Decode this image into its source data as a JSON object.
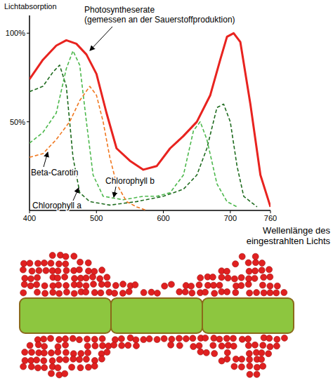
{
  "chart_data": {
    "type": "line",
    "y_label": "Lichtabsorption",
    "x_label": "Wellenlänge des eingestrahlten Lichts",
    "grid": false,
    "xlim": [
      400,
      760
    ],
    "xticks": [
      400,
      500,
      600,
      700,
      760
    ],
    "ylim": [
      0,
      110
    ],
    "yticks": [
      {
        "value": 50,
        "label": "50%"
      },
      {
        "value": 100,
        "label": "100%"
      }
    ],
    "series": [
      {
        "name": "Photosyntheserate (gemessen an der Sauerstoffproduktion)",
        "color": "#e8231f",
        "line_style": "solid",
        "x": [
          400,
          420,
          440,
          455,
          470,
          485,
          500,
          515,
          530,
          550,
          570,
          590,
          610,
          630,
          650,
          670,
          685,
          695,
          705,
          715,
          730,
          745,
          760
        ],
        "values": [
          74,
          85,
          93,
          96,
          94,
          88,
          77,
          55,
          35,
          28,
          23,
          25,
          35,
          42,
          50,
          65,
          85,
          98,
          100,
          95,
          60,
          20,
          2
        ]
      },
      {
        "name": "Chlorophyll a",
        "color": "#1e6b1e",
        "line_style": "dashed",
        "x": [
          400,
          420,
          435,
          445,
          455,
          465,
          475,
          490,
          520,
          560,
          600,
          630,
          650,
          665,
          680,
          690,
          700,
          710,
          720,
          740
        ],
        "values": [
          67,
          70,
          78,
          82,
          70,
          30,
          10,
          5,
          3,
          5,
          8,
          12,
          20,
          35,
          58,
          60,
          50,
          25,
          8,
          2
        ]
      },
      {
        "name": "Chlorophyll b",
        "color": "#4cb84c",
        "line_style": "dashed",
        "x": [
          400,
          420,
          440,
          455,
          465,
          475,
          485,
          495,
          510,
          540,
          570,
          590,
          610,
          630,
          645,
          655,
          665,
          680,
          695,
          710
        ],
        "values": [
          38,
          44,
          55,
          80,
          90,
          82,
          50,
          20,
          8,
          6,
          8,
          8,
          10,
          20,
          45,
          50,
          40,
          15,
          5,
          2
        ]
      },
      {
        "name": "Beta-Carotin",
        "color": "#f07820",
        "line_style": "dashed",
        "x": [
          400,
          420,
          440,
          460,
          475,
          490,
          500,
          510,
          520,
          530,
          545,
          560,
          575
        ],
        "values": [
          30,
          32,
          40,
          50,
          62,
          70,
          65,
          50,
          30,
          15,
          5,
          2,
          0
        ]
      }
    ]
  }
}
